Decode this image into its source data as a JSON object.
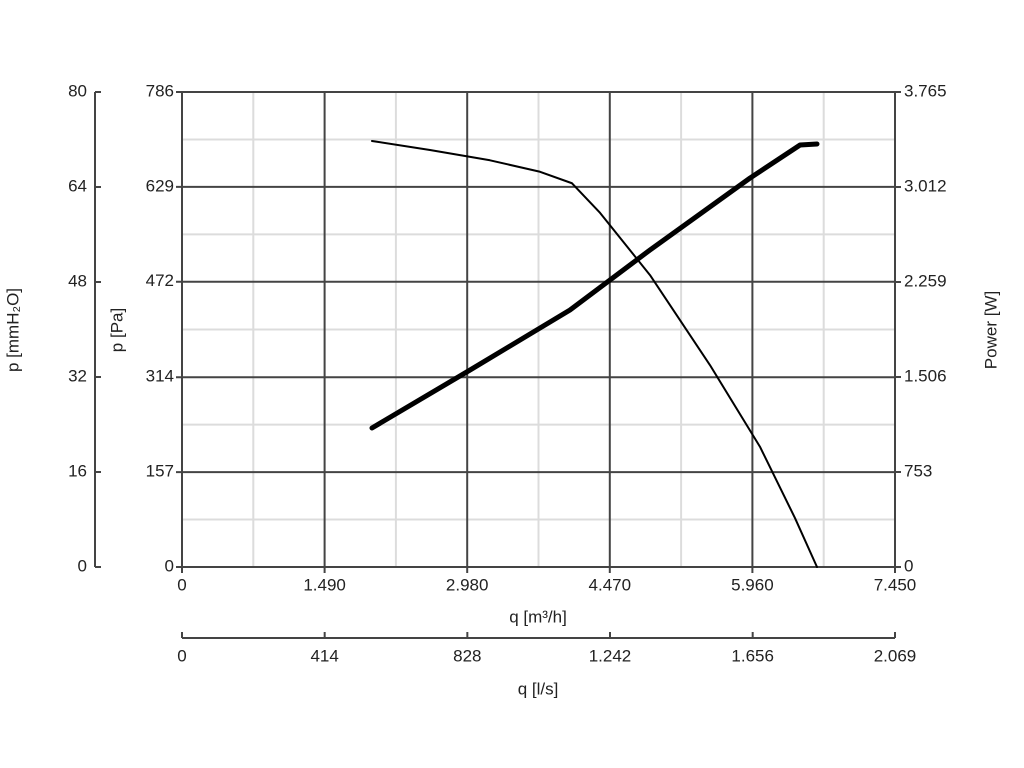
{
  "chart_data": {
    "type": "line",
    "xlabel": "q [m³/h]",
    "xlim": [
      0,
      7450
    ],
    "xticks": [
      0,
      {
        "value": 1490,
        "label": "1.490"
      },
      {
        "value": 2980,
        "label": "2.980"
      },
      {
        "value": 4470,
        "label": "4.470"
      },
      {
        "value": 5960,
        "label": "5.960"
      },
      {
        "value": 7450,
        "label": "7.450"
      }
    ],
    "x2label": "q [l/s]",
    "x2lim": [
      0,
      2069
    ],
    "x2ticks": [
      0,
      414,
      828,
      {
        "value": 1242,
        "label": "1.242"
      },
      {
        "value": 1656,
        "label": "1.656"
      },
      {
        "value": 2069,
        "label": "2.069"
      }
    ],
    "ylabel": "p [Pa]",
    "ylim": [
      0,
      786
    ],
    "yticks": [
      0,
      157,
      314,
      472,
      629,
      786
    ],
    "y3label": "p [mmH₂O]",
    "y3lim": [
      0,
      80
    ],
    "y3ticks": [
      0,
      16,
      32,
      48,
      64,
      80
    ],
    "y2label": "Power [W]",
    "y2lim": [
      0,
      3765
    ],
    "y2ticks": [
      0,
      753,
      {
        "value": 1506,
        "label": "1.506"
      },
      {
        "value": 2259,
        "label": "2.259"
      },
      {
        "value": 3012,
        "label": "3.012"
      },
      {
        "value": 3765,
        "label": "3.765"
      }
    ],
    "grid": true,
    "series": [
      {
        "color": "#000000",
        "width": 2,
        "x": [
          1985,
          2591,
          3218,
          3741,
          4075,
          4368,
          4890,
          5517,
          6039,
          6405,
          6635
        ],
        "values": [
          705,
          690,
          673,
          654,
          635,
          586,
          483,
          334,
          199,
          81,
          0
        ]
      },
      {
        "color": "#000000",
        "width": 5,
        "axis": "y2",
        "x": [
          1985,
          3009,
          4054,
          4890,
          5935,
          6458,
          6635
        ],
        "values": [
          1102,
          1561,
          2037,
          2513,
          3083,
          3345,
          3353
        ]
      }
    ]
  }
}
